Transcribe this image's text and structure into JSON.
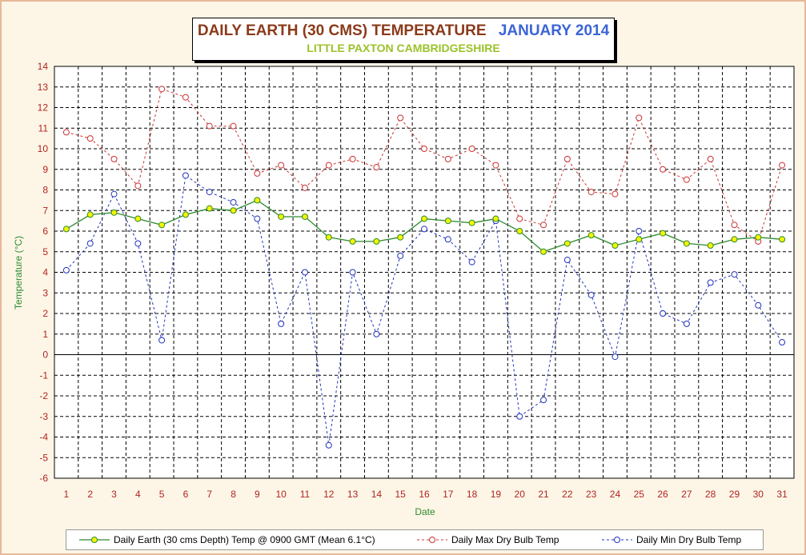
{
  "title": {
    "main": "DAILY EARTH (30 CMS) TEMPERATURE",
    "date": "JANUARY 2014",
    "subtitle": "LITTLE PAXTON CAMBRIDGESHIRE"
  },
  "colors": {
    "earth": "#2e8b2e",
    "earth_marker": "#f5f500",
    "max": "#cc3333",
    "min": "#2233bb",
    "axis_text": "#b22222",
    "axis_label": "#2e8b2e",
    "background": "#fdf6e6"
  },
  "chart_data": {
    "type": "line",
    "xlabel": "Date",
    "ylabel": "Temperature (°C)",
    "xlim": [
      1,
      31
    ],
    "ylim": [
      -6,
      14
    ],
    "yticks": [
      -6,
      -5,
      -4,
      -3,
      -2,
      -1,
      0,
      1,
      2,
      3,
      4,
      5,
      6,
      7,
      8,
      9,
      10,
      11,
      12,
      13,
      14
    ],
    "x": [
      1,
      2,
      3,
      4,
      5,
      6,
      7,
      8,
      9,
      10,
      11,
      12,
      13,
      14,
      15,
      16,
      17,
      18,
      19,
      20,
      21,
      22,
      23,
      24,
      25,
      26,
      27,
      28,
      29,
      30,
      31
    ],
    "grid": true,
    "legend_position": "bottom",
    "series": [
      {
        "name": "Daily Earth (30 cms Depth) Temp @ 0900 GMT (Mean 6.1°C)",
        "style": "solid",
        "values": [
          6.1,
          6.8,
          6.9,
          6.6,
          6.3,
          6.8,
          7.1,
          7.0,
          7.5,
          6.7,
          6.7,
          5.7,
          5.5,
          5.5,
          5.7,
          6.6,
          6.5,
          6.4,
          6.6,
          6.0,
          5.0,
          5.4,
          5.8,
          5.3,
          5.6,
          5.9,
          5.4,
          5.3,
          5.6,
          5.7,
          5.6
        ]
      },
      {
        "name": "Daily Max Dry Bulb Temp",
        "style": "dashed",
        "values": [
          10.8,
          10.5,
          9.5,
          8.2,
          12.9,
          12.5,
          11.1,
          11.1,
          8.8,
          9.2,
          8.1,
          9.2,
          9.5,
          9.1,
          11.5,
          10.0,
          9.5,
          10.0,
          9.2,
          6.6,
          6.3,
          9.5,
          7.9,
          7.8,
          11.5,
          9.0,
          8.5,
          9.5,
          6.3,
          5.5,
          9.2
        ]
      },
      {
        "name": "Daily Min Dry Bulb Temp",
        "style": "dashed",
        "values": [
          4.1,
          5.4,
          7.8,
          5.4,
          0.7,
          8.7,
          7.9,
          7.4,
          6.6,
          1.5,
          4.0,
          -4.4,
          4.0,
          1.0,
          4.8,
          6.1,
          5.6,
          4.5,
          6.5,
          -3.0,
          -2.2,
          4.6,
          2.9,
          -0.1,
          6.0,
          2.0,
          1.5,
          3.5,
          3.9,
          2.4,
          0.6
        ]
      }
    ]
  }
}
